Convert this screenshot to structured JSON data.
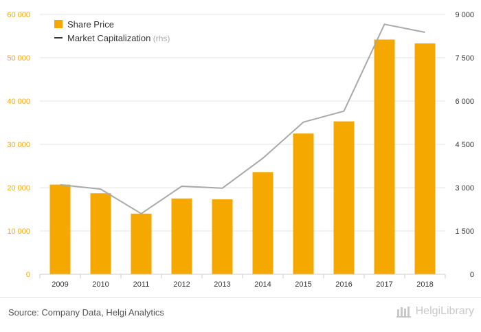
{
  "chart_data": {
    "type": "bar",
    "categories": [
      "2009",
      "2010",
      "2011",
      "2012",
      "2013",
      "2014",
      "2015",
      "2016",
      "2017",
      "2018"
    ],
    "series": [
      {
        "name": "Share Price",
        "kind": "bar",
        "axis": "left",
        "color": "#f5a800",
        "values": [
          20700,
          18700,
          14000,
          17500,
          17300,
          23600,
          32500,
          35300,
          54200,
          53300
        ]
      },
      {
        "name": "Market Capitalization",
        "kind": "line",
        "axis": "right",
        "color": "#a9a9a9",
        "values": [
          3100,
          2950,
          2100,
          3050,
          2980,
          4020,
          5270,
          5650,
          8660,
          8380
        ]
      }
    ],
    "legend": {
      "position": "top-left",
      "items": [
        {
          "label": "Share Price",
          "note": "",
          "marker": "square",
          "color": "#f5a800"
        },
        {
          "label": "Market Capitalization",
          "note": "(rhs)",
          "marker": "line",
          "color": "#333333"
        }
      ]
    },
    "y_left": {
      "min": 0,
      "max": 60000,
      "ticks": [
        0,
        10000,
        20000,
        30000,
        40000,
        50000,
        60000
      ],
      "tick_labels": [
        "0",
        "10 000",
        "20 000",
        "30 000",
        "40 000",
        "50 000",
        "60 000"
      ],
      "color": "#f5a800"
    },
    "y_right": {
      "min": 0,
      "max": 9000,
      "ticks": [
        0,
        1500,
        3000,
        4500,
        6000,
        7500,
        9000
      ],
      "tick_labels": [
        "0",
        "1 500",
        "3 000",
        "4 500",
        "6 000",
        "7 500",
        "9 000"
      ],
      "color": "#333333"
    },
    "grid": true
  },
  "footer": {
    "source": "Source: Company Data, Helgi Analytics",
    "brand": "HelgiLibrary"
  }
}
